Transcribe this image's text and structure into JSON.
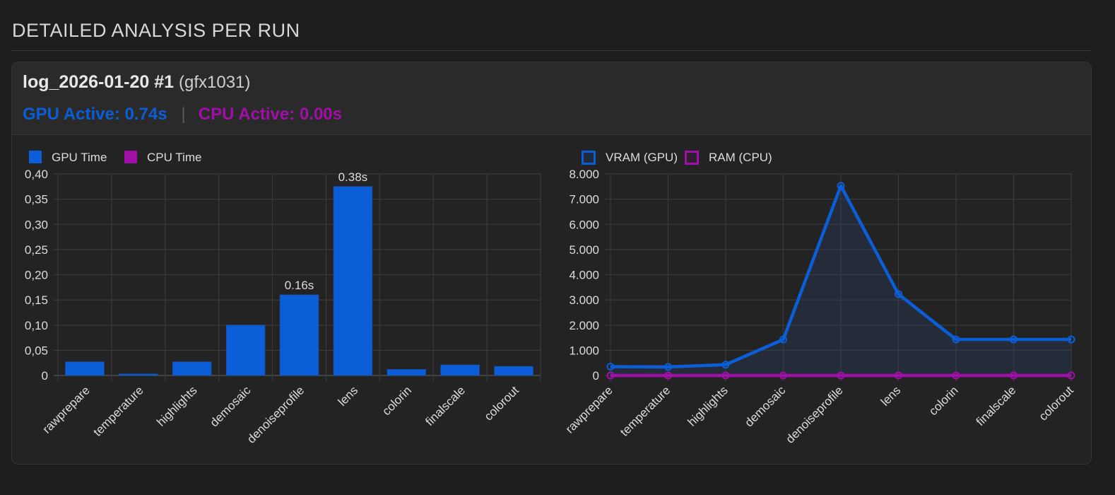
{
  "section": {
    "title": "DETAILED ANALYSIS PER RUN"
  },
  "run": {
    "title": "log_2026-01-20 #1",
    "gpu_model": "(gfx1031)",
    "gpu_active": "GPU Active: 0.74s",
    "separator": "|",
    "cpu_active": "CPU Active: 0.00s"
  },
  "colors": {
    "gpu": "#0b5ed7",
    "cpu": "#a010a8",
    "grid": "#3a3a3a",
    "text": "#e0e0e0"
  },
  "chart_data": [
    {
      "type": "bar",
      "title": "",
      "xlabel": "",
      "ylabel": "",
      "categories": [
        "rawprepare",
        "temperature",
        "highlights",
        "demosaic",
        "denoiseprofile",
        "lens",
        "colorin",
        "finalscale",
        "colorout"
      ],
      "series": [
        {
          "name": "GPU Time",
          "values": [
            0.027,
            0.003,
            0.027,
            0.1,
            0.16,
            0.375,
            0.012,
            0.021,
            0.018
          ]
        },
        {
          "name": "CPU Time",
          "values": [
            0,
            0,
            0,
            0,
            0,
            0,
            0,
            0,
            0
          ]
        }
      ],
      "data_labels": [
        {
          "category": "denoiseprofile",
          "text": "0.16s"
        },
        {
          "category": "lens",
          "text": "0.38s"
        }
      ],
      "ylim": [
        0,
        0.4
      ],
      "yticks": [
        "0",
        "0,05",
        "0,10",
        "0,15",
        "0,20",
        "0,25",
        "0,30",
        "0,35",
        "0,40"
      ],
      "legend": "top-left",
      "grid": true
    },
    {
      "type": "line",
      "title": "",
      "xlabel": "",
      "ylabel": "",
      "categories": [
        "rawprepare",
        "temperature",
        "highlights",
        "demosaic",
        "denoiseprofile",
        "lens",
        "colorin",
        "finalscale",
        "colorout"
      ],
      "series": [
        {
          "name": "VRAM (GPU)",
          "values": [
            350,
            340,
            430,
            1430,
            7530,
            3230,
            1430,
            1430,
            1430
          ],
          "fill": true
        },
        {
          "name": "RAM (CPU)",
          "values": [
            0,
            0,
            0,
            0,
            0,
            0,
            0,
            0,
            0
          ],
          "fill": false
        }
      ],
      "ylim": [
        0,
        8000
      ],
      "yticks": [
        "0",
        "1.000",
        "2.000",
        "3.000",
        "4.000",
        "5.000",
        "6.000",
        "7.000",
        "8.000"
      ],
      "legend": "top-left",
      "grid": true
    }
  ]
}
